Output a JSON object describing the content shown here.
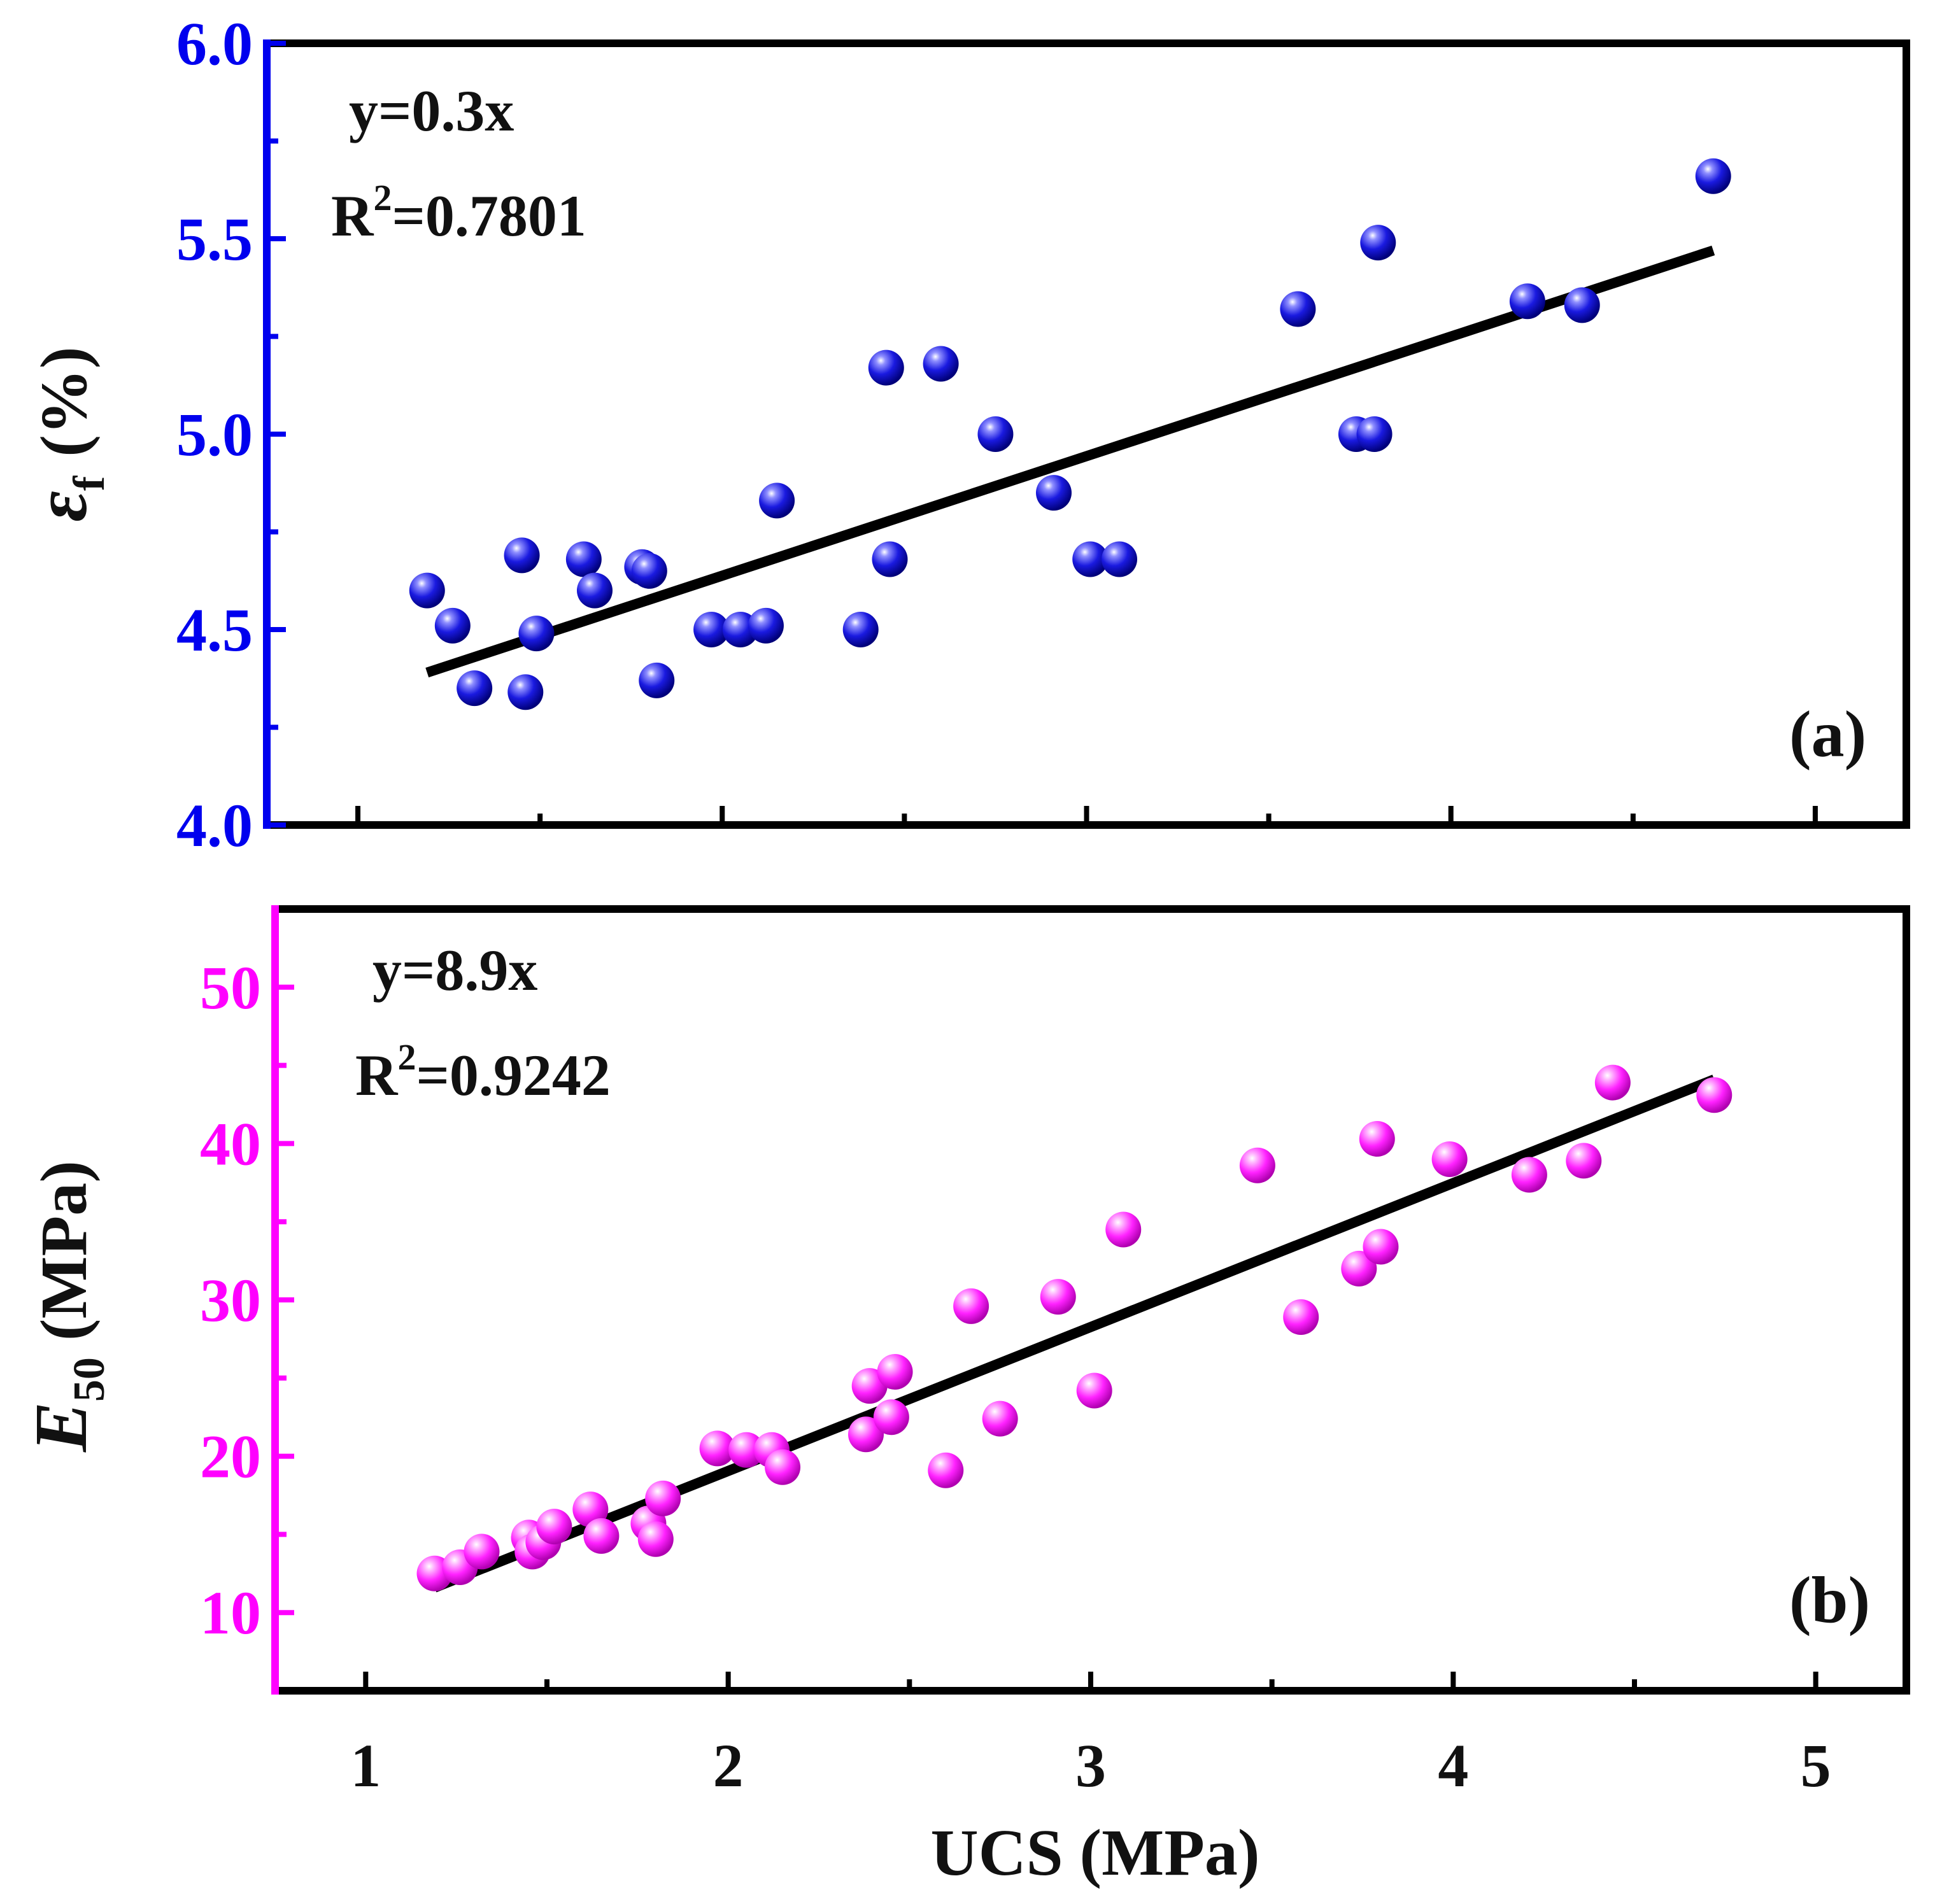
{
  "chart_data": [
    {
      "type": "scatter",
      "panel_label": "(a)",
      "xlabel": "UCS (MPa)",
      "ylabel_symbol": "ε",
      "ylabel_subscript": "f",
      "ylabel_unit": "(%)",
      "xlim": [
        0.75,
        5.25
      ],
      "ylim": [
        4.0,
        6.0
      ],
      "x_ticks": [
        1,
        2,
        3,
        4,
        5
      ],
      "y_ticks": [
        4.0,
        4.5,
        5.0,
        5.5,
        6.0
      ],
      "y_tick_labels": [
        "4.0",
        "4.5",
        "5.0",
        "5.5",
        "6.0"
      ],
      "axis_color": "#0000ee",
      "marker_color": "#1010dd",
      "fit": {
        "label": "y=0.3x",
        "r2_prefix": "R",
        "r2_exp": "2",
        "r2_value": "=0.7801",
        "x": [
          1.19,
          4.72
        ],
        "y": [
          4.39,
          5.47
        ]
      },
      "points": [
        {
          "x": 1.19,
          "y": 4.6
        },
        {
          "x": 1.26,
          "y": 4.51
        },
        {
          "x": 1.32,
          "y": 4.35
        },
        {
          "x": 1.45,
          "y": 4.69
        },
        {
          "x": 1.46,
          "y": 4.34
        },
        {
          "x": 1.49,
          "y": 4.49
        },
        {
          "x": 1.62,
          "y": 4.68
        },
        {
          "x": 1.65,
          "y": 4.6
        },
        {
          "x": 1.78,
          "y": 4.66
        },
        {
          "x": 1.8,
          "y": 4.65
        },
        {
          "x": 1.82,
          "y": 4.37
        },
        {
          "x": 1.97,
          "y": 4.5
        },
        {
          "x": 2.05,
          "y": 4.5
        },
        {
          "x": 2.12,
          "y": 4.51
        },
        {
          "x": 2.15,
          "y": 4.83
        },
        {
          "x": 2.38,
          "y": 4.5
        },
        {
          "x": 2.45,
          "y": 5.17
        },
        {
          "x": 2.46,
          "y": 4.68
        },
        {
          "x": 2.6,
          "y": 5.18
        },
        {
          "x": 2.75,
          "y": 5.0
        },
        {
          "x": 2.91,
          "y": 4.85
        },
        {
          "x": 3.01,
          "y": 4.68
        },
        {
          "x": 3.09,
          "y": 4.68
        },
        {
          "x": 3.58,
          "y": 5.32
        },
        {
          "x": 3.74,
          "y": 5.0
        },
        {
          "x": 3.79,
          "y": 5.0
        },
        {
          "x": 3.8,
          "y": 5.49
        },
        {
          "x": 4.21,
          "y": 5.34
        },
        {
          "x": 4.36,
          "y": 5.33
        },
        {
          "x": 4.72,
          "y": 5.66
        }
      ]
    },
    {
      "type": "scatter",
      "panel_label": "(b)",
      "xlabel": "UCS (MPa)",
      "ylabel_symbol": "E",
      "ylabel_subscript": "50",
      "ylabel_unit": "(MPa)",
      "xlim": [
        0.75,
        5.25
      ],
      "ylim": [
        5,
        55
      ],
      "x_ticks": [
        1,
        2,
        3,
        4,
        5
      ],
      "y_ticks": [
        10,
        20,
        30,
        40,
        50
      ],
      "y_tick_labels": [
        "10",
        "20",
        "30",
        "40",
        "50"
      ],
      "axis_color": "#ff00ff",
      "marker_color": "#ff22ff",
      "fit": {
        "label": "y=8.9x",
        "r2_prefix": "R",
        "r2_exp": "2",
        "r2_value": "=0.9242",
        "x": [
          1.19,
          4.72
        ],
        "y": [
          11.6,
          44.1
        ]
      },
      "points": [
        {
          "x": 1.19,
          "y": 12.5
        },
        {
          "x": 1.26,
          "y": 12.9
        },
        {
          "x": 1.32,
          "y": 13.9
        },
        {
          "x": 1.45,
          "y": 14.8
        },
        {
          "x": 1.46,
          "y": 13.9
        },
        {
          "x": 1.49,
          "y": 14.5
        },
        {
          "x": 1.52,
          "y": 15.5
        },
        {
          "x": 1.62,
          "y": 16.6
        },
        {
          "x": 1.65,
          "y": 14.9
        },
        {
          "x": 1.78,
          "y": 15.7
        },
        {
          "x": 1.8,
          "y": 14.7
        },
        {
          "x": 1.82,
          "y": 17.3
        },
        {
          "x": 1.97,
          "y": 20.5
        },
        {
          "x": 2.05,
          "y": 20.4
        },
        {
          "x": 2.12,
          "y": 20.4
        },
        {
          "x": 2.15,
          "y": 19.3
        },
        {
          "x": 2.38,
          "y": 21.4
        },
        {
          "x": 2.39,
          "y": 24.5
        },
        {
          "x": 2.45,
          "y": 22.5
        },
        {
          "x": 2.46,
          "y": 25.4
        },
        {
          "x": 2.6,
          "y": 19.1
        },
        {
          "x": 2.67,
          "y": 29.6
        },
        {
          "x": 2.75,
          "y": 22.4
        },
        {
          "x": 2.91,
          "y": 30.2
        },
        {
          "x": 3.01,
          "y": 24.2
        },
        {
          "x": 3.09,
          "y": 34.5
        },
        {
          "x": 3.46,
          "y": 38.6
        },
        {
          "x": 3.58,
          "y": 28.9
        },
        {
          "x": 3.74,
          "y": 32.0
        },
        {
          "x": 3.79,
          "y": 40.3
        },
        {
          "x": 3.8,
          "y": 33.4
        },
        {
          "x": 3.99,
          "y": 39.0
        },
        {
          "x": 4.21,
          "y": 38.0
        },
        {
          "x": 4.36,
          "y": 38.9
        },
        {
          "x": 4.44,
          "y": 43.9
        },
        {
          "x": 4.72,
          "y": 43.1
        }
      ]
    }
  ]
}
